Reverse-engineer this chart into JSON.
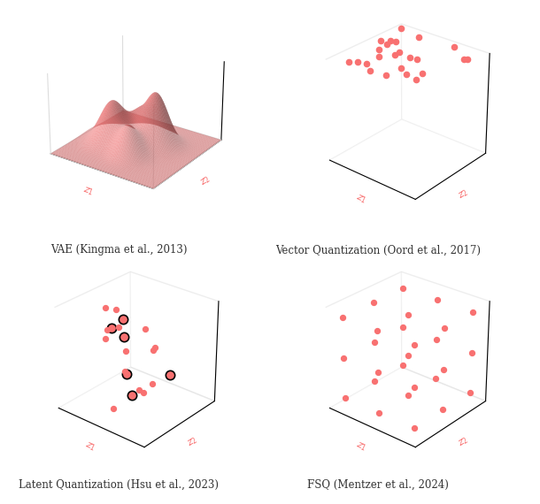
{
  "salmon_color": "#F87171",
  "salmon_light": "#FFBBBB",
  "axis_color": "#DDDDDD",
  "text_color": "#333333",
  "label_color": "#F87171",
  "background": "#FFFFFF",
  "titles": [
    "VAE (Kingma et al., 2013)",
    "Vector Quantization (Oord et al., 2017)",
    "Latent Quantization (Hsu et al., 2023)",
    "FSQ (Mentzer et al., 2024)"
  ],
  "vae_elev": 25,
  "vae_azim": -55,
  "scatter_elev": 28,
  "scatter_azim": -50,
  "vq_seed": 42,
  "lq_seed": 17,
  "lq_n": 20,
  "lq_hi_indices": [
    3,
    6,
    9,
    12,
    15,
    18
  ],
  "fsq_levels": [
    0.1,
    0.5,
    0.9
  ]
}
